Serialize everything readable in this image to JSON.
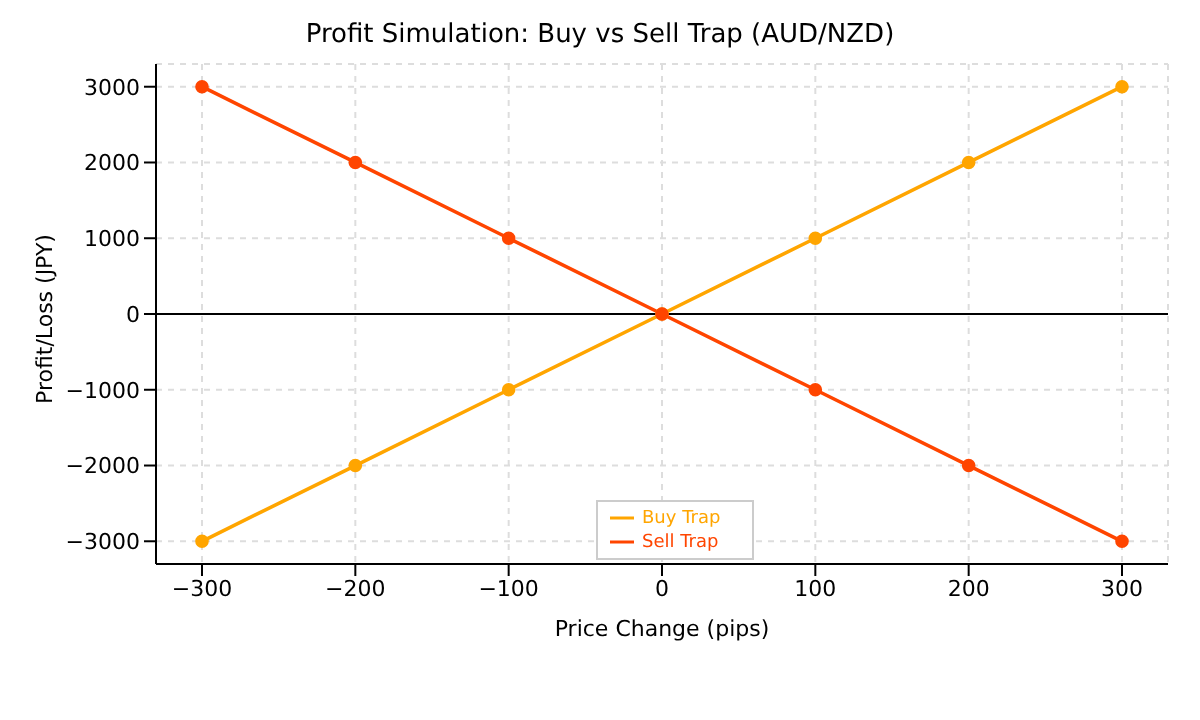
{
  "chart_data": {
    "type": "line",
    "title": "Profit Simulation: Buy vs Sell Trap (AUD/NZD)",
    "xlabel": "Price Change (pips)",
    "ylabel": "Profit/Loss (JPY)",
    "x": [
      -300,
      -200,
      -100,
      0,
      100,
      200,
      300
    ],
    "series": [
      {
        "name": "Buy Trap",
        "color": "#ffa500",
        "values": [
          -3000,
          -2000,
          -1000,
          0,
          1000,
          2000,
          3000
        ]
      },
      {
        "name": "Sell Trap",
        "color": "#ff4500",
        "values": [
          3000,
          2000,
          1000,
          0,
          -1000,
          -2000,
          -3000
        ]
      }
    ],
    "xlim": [
      -330,
      330
    ],
    "xticks": [
      -300,
      -200,
      -100,
      0,
      100,
      200,
      300
    ],
    "ylim": [
      -3300,
      3300
    ],
    "yticks": [
      -3000,
      -2000,
      -1000,
      0,
      1000,
      2000,
      3000
    ],
    "ref_lines": [
      {
        "axis": "y",
        "value": 0,
        "color": "#000000"
      }
    ],
    "grid": true,
    "legend": "bottom",
    "marker": "circle",
    "line_style": "solid"
  }
}
